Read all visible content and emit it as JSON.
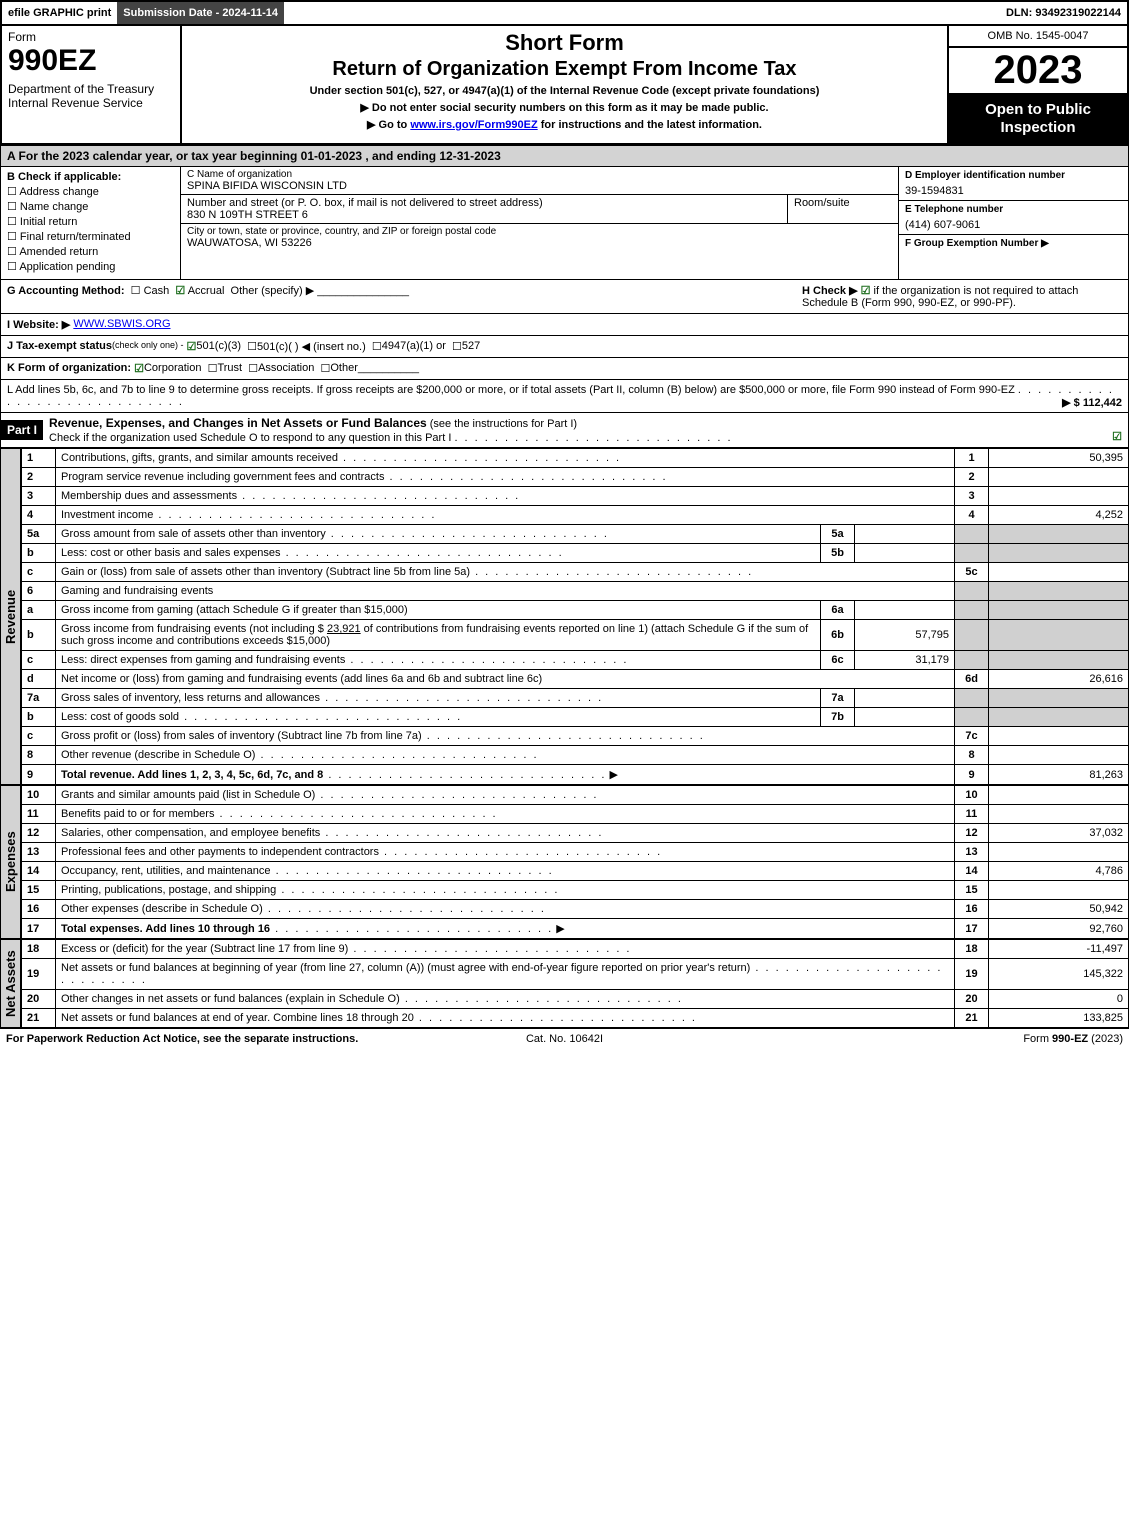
{
  "top_bar": {
    "efile": "efile GRAPHIC print",
    "submission": "Submission Date - 2024-11-14",
    "dln": "DLN: 93492319022144"
  },
  "header": {
    "form_label": "Form",
    "form_number": "990EZ",
    "department": "Department of the Treasury\nInternal Revenue Service",
    "short_form": "Short Form",
    "title": "Return of Organization Exempt From Income Tax",
    "subtitle": "Under section 501(c), 527, or 4947(a)(1) of the Internal Revenue Code (except private foundations)",
    "instr1": "▶ Do not enter social security numbers on this form as it may be made public.",
    "instr2_pre": "▶ Go to ",
    "instr2_link": "www.irs.gov/Form990EZ",
    "instr2_post": " for instructions and the latest information.",
    "omb": "OMB No. 1545-0047",
    "year": "2023",
    "open_public": "Open to Public Inspection"
  },
  "section_a": "A  For the 2023 calendar year, or tax year beginning 01-01-2023 , and ending 12-31-2023",
  "col_b": {
    "label": "B  Check if applicable:",
    "items": [
      "Address change",
      "Name change",
      "Initial return",
      "Final return/terminated",
      "Amended return",
      "Application pending"
    ]
  },
  "col_c": {
    "name_hdr": "C Name of organization",
    "name": "SPINA BIFIDA WISCONSIN LTD",
    "addr_hdr": "Number and street (or P. O. box, if mail is not delivered to street address)",
    "addr": "830 N 109TH STREET 6",
    "room_hdr": "Room/suite",
    "room": "",
    "city_hdr": "City or town, state or province, country, and ZIP or foreign postal code",
    "city": "WAUWATOSA, WI  53226"
  },
  "col_d": {
    "ein_hdr": "D Employer identification number",
    "ein": "39-1594831",
    "tel_hdr": "E Telephone number",
    "tel": "(414) 607-9061",
    "grp_hdr": "F Group Exemption Number  ▶",
    "grp": ""
  },
  "row_g": {
    "label": "G Accounting Method:",
    "cash": "Cash",
    "accrual": "Accrual",
    "other": "Other (specify) ▶"
  },
  "row_h": {
    "label": "H  Check ▶",
    "text": " if the organization is not required to attach Schedule B (Form 990, 990-EZ, or 990-PF)."
  },
  "row_i": {
    "label": "I Website: ▶",
    "value": "WWW.SBWIS.ORG"
  },
  "row_j": {
    "label": "J Tax-exempt status",
    "sub": "(check only one) -",
    "opt1": "501(c)(3)",
    "opt2": "501(c)(  ) ◀ (insert no.)",
    "opt3": "4947(a)(1) or",
    "opt4": "527"
  },
  "row_k": {
    "label": "K Form of organization:",
    "opts": [
      "Corporation",
      "Trust",
      "Association",
      "Other"
    ]
  },
  "row_l": {
    "text": "L Add lines 5b, 6c, and 7b to line 9 to determine gross receipts. If gross receipts are $200,000 or more, or if total assets (Part II, column (B) below) are $500,000 or more, file Form 990 instead of Form 990-EZ",
    "amount": "▶ $ 112,442"
  },
  "part1": {
    "label": "Part I",
    "title": "Revenue, Expenses, and Changes in Net Assets or Fund Balances",
    "sub": " (see the instructions for Part I)",
    "check_line": "Check if the organization used Schedule O to respond to any question in this Part I"
  },
  "revenue_lines": [
    {
      "num": "1",
      "desc": "Contributions, gifts, grants, and similar amounts received",
      "rnum": "1",
      "amt": "50,395"
    },
    {
      "num": "2",
      "desc": "Program service revenue including government fees and contracts",
      "rnum": "2",
      "amt": ""
    },
    {
      "num": "3",
      "desc": "Membership dues and assessments",
      "rnum": "3",
      "amt": ""
    },
    {
      "num": "4",
      "desc": "Investment income",
      "rnum": "4",
      "amt": "4,252"
    }
  ],
  "line5": {
    "a_desc": "Gross amount from sale of assets other than inventory",
    "b_desc": "Less: cost or other basis and sales expenses",
    "c_desc": "Gain or (loss) from sale of assets other than inventory (Subtract line 5b from line 5a)",
    "a_val": "",
    "b_val": "",
    "c_amt": ""
  },
  "line6": {
    "hdr": "Gaming and fundraising events",
    "a_desc": "Gross income from gaming (attach Schedule G if greater than $15,000)",
    "a_val": "",
    "b_desc_pre": "Gross income from fundraising events (not including $ ",
    "b_contrib": "23,921",
    "b_desc_post": " of contributions from fundraising events reported on line 1) (attach Schedule G if the sum of such gross income and contributions exceeds $15,000)",
    "b_val": "57,795",
    "c_desc": "Less: direct expenses from gaming and fundraising events",
    "c_val": "31,179",
    "d_desc": "Net income or (loss) from gaming and fundraising events (add lines 6a and 6b and subtract line 6c)",
    "d_amt": "26,616"
  },
  "line7": {
    "a_desc": "Gross sales of inventory, less returns and allowances",
    "b_desc": "Less: cost of goods sold",
    "c_desc": "Gross profit or (loss) from sales of inventory (Subtract line 7b from line 7a)",
    "a_val": "",
    "b_val": "",
    "c_amt": ""
  },
  "line8": {
    "desc": "Other revenue (describe in Schedule O)",
    "amt": ""
  },
  "line9": {
    "desc": "Total revenue. Add lines 1, 2, 3, 4, 5c, 6d, 7c, and 8",
    "amt": "81,263"
  },
  "expense_lines": [
    {
      "num": "10",
      "desc": "Grants and similar amounts paid (list in Schedule O)",
      "rnum": "10",
      "amt": ""
    },
    {
      "num": "11",
      "desc": "Benefits paid to or for members",
      "rnum": "11",
      "amt": ""
    },
    {
      "num": "12",
      "desc": "Salaries, other compensation, and employee benefits",
      "rnum": "12",
      "amt": "37,032"
    },
    {
      "num": "13",
      "desc": "Professional fees and other payments to independent contractors",
      "rnum": "13",
      "amt": ""
    },
    {
      "num": "14",
      "desc": "Occupancy, rent, utilities, and maintenance",
      "rnum": "14",
      "amt": "4,786"
    },
    {
      "num": "15",
      "desc": "Printing, publications, postage, and shipping",
      "rnum": "15",
      "amt": ""
    },
    {
      "num": "16",
      "desc": "Other expenses (describe in Schedule O)",
      "rnum": "16",
      "amt": "50,942"
    },
    {
      "num": "17",
      "desc": "Total expenses. Add lines 10 through 16",
      "rnum": "17",
      "amt": "92,760",
      "bold": true
    }
  ],
  "netassets_lines": [
    {
      "num": "18",
      "desc": "Excess or (deficit) for the year (Subtract line 17 from line 9)",
      "rnum": "18",
      "amt": "-11,497"
    },
    {
      "num": "19",
      "desc": "Net assets or fund balances at beginning of year (from line 27, column (A)) (must agree with end-of-year figure reported on prior year's return)",
      "rnum": "19",
      "amt": "145,322"
    },
    {
      "num": "20",
      "desc": "Other changes in net assets or fund balances (explain in Schedule O)",
      "rnum": "20",
      "amt": "0"
    },
    {
      "num": "21",
      "desc": "Net assets or fund balances at end of year. Combine lines 18 through 20",
      "rnum": "21",
      "amt": "133,825"
    }
  ],
  "side_labels": {
    "revenue": "Revenue",
    "expenses": "Expenses",
    "netassets": "Net Assets"
  },
  "footer": {
    "left": "For Paperwork Reduction Act Notice, see the separate instructions.",
    "mid": "Cat. No. 10642I",
    "right_pre": "Form ",
    "right_form": "990-EZ",
    "right_post": " (2023)"
  },
  "colors": {
    "header_bg": "#444444",
    "shade": "#d3d3d3",
    "black": "#000000",
    "check_green": "#1a6b1a"
  }
}
